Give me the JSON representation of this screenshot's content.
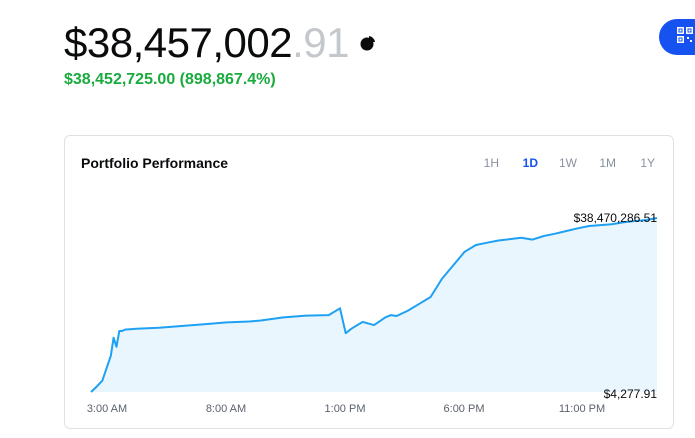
{
  "balance": {
    "dollars": "$38,457,002",
    "cents": ".91",
    "change": "$38,452,725.00 (898,867.4%)"
  },
  "icons": {
    "allocation": "pie-chart-icon",
    "qr": "qr-code-icon"
  },
  "colors": {
    "accent": "#1652f0",
    "positive": "#1aab3f",
    "line": "#1ea1f2",
    "fill": "#eaf6fe"
  },
  "card": {
    "title": "Portfolio Performance",
    "ranges": [
      {
        "label": "1H",
        "active": false
      },
      {
        "label": "1D",
        "active": true
      },
      {
        "label": "1W",
        "active": false
      },
      {
        "label": "1M",
        "active": false
      },
      {
        "label": "1Y",
        "active": false
      }
    ]
  },
  "chart_data": {
    "type": "area",
    "x_ticks": [
      "3:00 AM",
      "8:00 AM",
      "1:00 PM",
      "6:00 PM",
      "11:00 PM"
    ],
    "max_label": "$38,470,286.51",
    "min_label": "$4,277.91",
    "x": [
      0,
      0.01,
      0.02,
      0.035,
      0.04,
      0.045,
      0.05,
      0.055,
      0.06,
      0.08,
      0.12,
      0.16,
      0.2,
      0.24,
      0.28,
      0.3,
      0.34,
      0.38,
      0.42,
      0.44,
      0.45,
      0.46,
      0.48,
      0.5,
      0.52,
      0.53,
      0.54,
      0.56,
      0.58,
      0.6,
      0.62,
      0.64,
      0.66,
      0.68,
      0.7,
      0.72,
      0.74,
      0.76,
      0.78,
      0.8,
      0.82,
      0.84,
      0.86,
      0.88,
      0.9,
      0.92,
      0.94,
      0.96,
      0.98,
      1.0
    ],
    "y": [
      4277.91,
      1200000,
      2500000,
      8000000,
      12000000,
      10000000,
      13500000,
      13500000,
      13800000,
      14000000,
      14200000,
      14600000,
      15000000,
      15400000,
      15600000,
      15800000,
      16500000,
      16900000,
      17000000,
      18500000,
      13000000,
      14000000,
      15500000,
      14800000,
      16500000,
      17000000,
      16800000,
      18000000,
      19500000,
      21000000,
      25000000,
      28000000,
      31000000,
      32500000,
      33000000,
      33500000,
      33800000,
      34100000,
      33700000,
      34500000,
      35000000,
      35600000,
      36200000,
      36700000,
      36900000,
      37100000,
      37500000,
      37800000,
      38000000,
      38470286.51
    ],
    "ylim": [
      4277.91,
      38470286.51
    ],
    "grid": false
  }
}
